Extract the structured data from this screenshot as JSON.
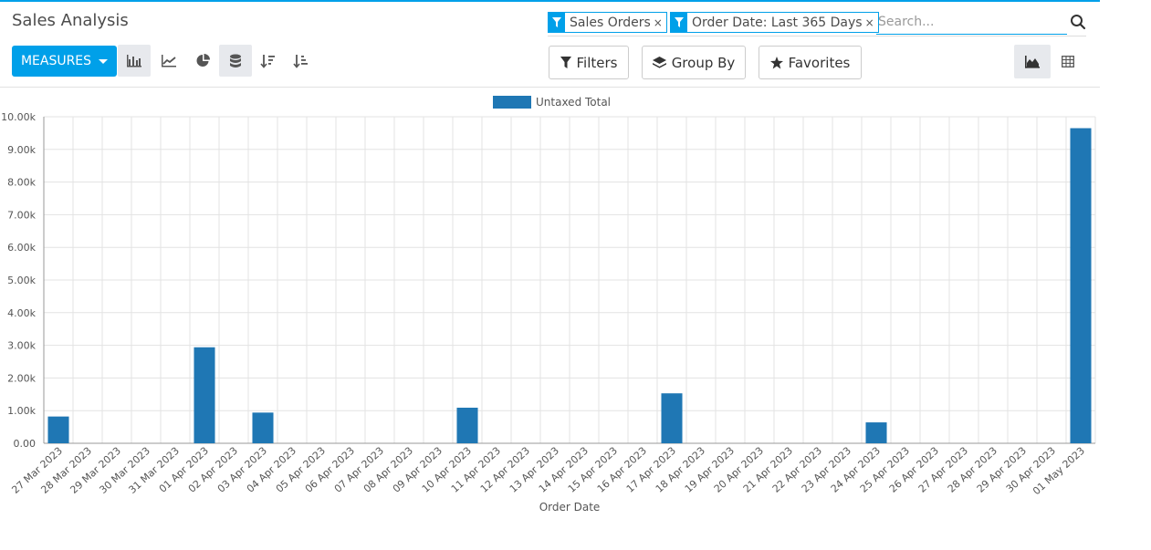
{
  "header": {
    "title": "Sales Analysis"
  },
  "search": {
    "facets": [
      {
        "label": "Sales Orders",
        "remove": "×"
      },
      {
        "label": "Order Date: Last 365 Days",
        "remove": "×"
      }
    ],
    "placeholder": "Search..."
  },
  "toolbar": {
    "measures_label": "MEASURES",
    "filters_label": "Filters",
    "group_by_label": "Group By",
    "favorites_label": "Favorites"
  },
  "colors": {
    "accent": "#00a0e9",
    "bar": "#1f77b4"
  },
  "chart_data": {
    "type": "bar",
    "legend": [
      "Untaxed Total"
    ],
    "legend_position": "top-center",
    "xlabel": "Order Date",
    "ylabel": "",
    "grid": true,
    "ylim": [
      0,
      10000
    ],
    "yticks": [
      "0.00",
      "1.00k",
      "2.00k",
      "3.00k",
      "4.00k",
      "5.00k",
      "6.00k",
      "7.00k",
      "8.00k",
      "9.00k",
      "10.00k"
    ],
    "categories": [
      "27 Mar 2023",
      "28 Mar 2023",
      "29 Mar 2023",
      "30 Mar 2023",
      "31 Mar 2023",
      "01 Apr 2023",
      "02 Apr 2023",
      "03 Apr 2023",
      "04 Apr 2023",
      "05 Apr 2023",
      "06 Apr 2023",
      "07 Apr 2023",
      "08 Apr 2023",
      "09 Apr 2023",
      "10 Apr 2023",
      "11 Apr 2023",
      "12 Apr 2023",
      "13 Apr 2023",
      "14 Apr 2023",
      "15 Apr 2023",
      "16 Apr 2023",
      "17 Apr 2023",
      "18 Apr 2023",
      "19 Apr 2023",
      "20 Apr 2023",
      "21 Apr 2023",
      "22 Apr 2023",
      "23 Apr 2023",
      "24 Apr 2023",
      "25 Apr 2023",
      "26 Apr 2023",
      "27 Apr 2023",
      "28 Apr 2023",
      "29 Apr 2023",
      "30 Apr 2023",
      "01 May 2023"
    ],
    "series": [
      {
        "name": "Untaxed Total",
        "values": [
          820,
          0,
          0,
          0,
          0,
          2940,
          0,
          940,
          0,
          0,
          0,
          0,
          0,
          0,
          1090,
          0,
          0,
          0,
          0,
          0,
          0,
          1530,
          0,
          0,
          0,
          0,
          0,
          0,
          640,
          0,
          0,
          0,
          0,
          0,
          0,
          9650
        ]
      }
    ]
  }
}
